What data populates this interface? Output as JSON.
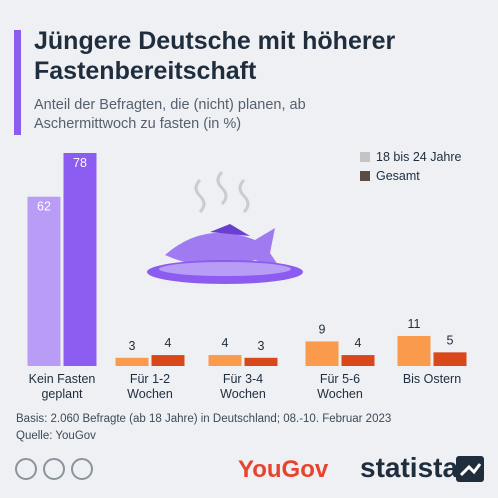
{
  "chart_data": {
    "type": "bar",
    "title": "Jüngere Deutsche mit höherer Fastenbereitschaft",
    "subtitle": "Anteil der Befragten, die (nicht) planen, ab Aschermittwoch zu fasten (in %)",
    "categories": [
      "Kein Fasten geplant",
      "Für 1-2 Wochen",
      "Für 3-4 Wochen",
      "Für 5-6 Wochen",
      "Bis Ostern"
    ],
    "series": [
      {
        "name": "18 bis 24 Jahre",
        "color": "#c4c4c4",
        "bar_colors": [
          "#b89cf5",
          "#f99a4c",
          "#f99a4c",
          "#f99a4c",
          "#f99a4c"
        ],
        "values": [
          62,
          3,
          4,
          9,
          11
        ]
      },
      {
        "name": "Gesamt",
        "color": "#5a4b45",
        "bar_colors": [
          "#8c5cf0",
          "#d9481a",
          "#d9481a",
          "#d9481a",
          "#d9481a"
        ],
        "values": [
          78,
          4,
          3,
          4,
          5
        ]
      }
    ],
    "source_note": "Basis: 2.060 Befragte (ab 18 Jahre) in Deutschland; 08.-10. Februar 2023",
    "source": "Quelle: YouGov"
  },
  "logos": {
    "yougov": "YouGov",
    "statista": "statista"
  }
}
